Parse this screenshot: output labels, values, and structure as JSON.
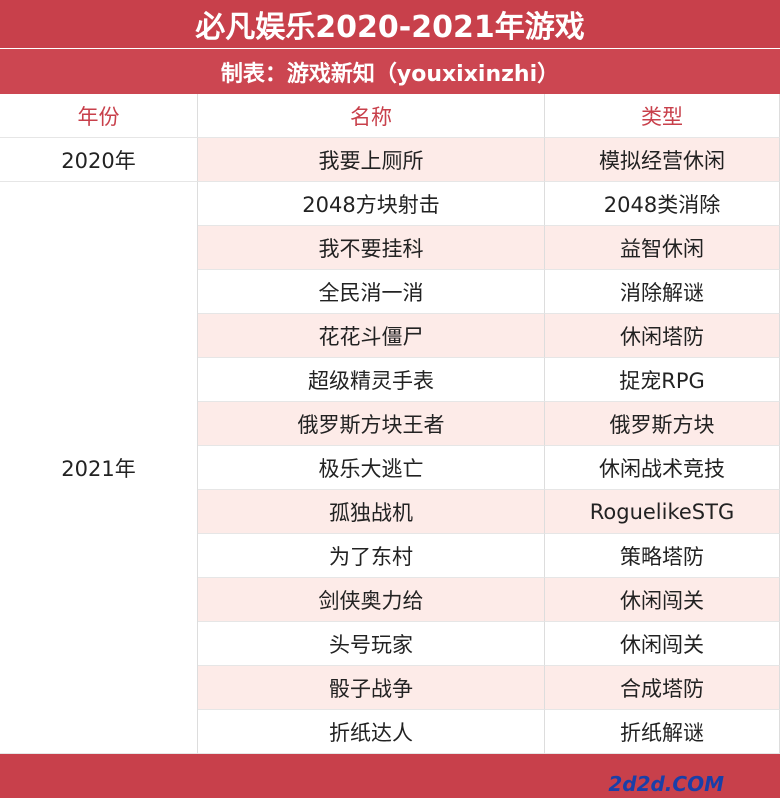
{
  "header": {
    "title": "必凡娱乐2020-2021年游戏",
    "subtitle": "制表：游戏新知（youxixinzhi）"
  },
  "table": {
    "columns": [
      "年份",
      "名称",
      "类型"
    ],
    "groups": [
      {
        "year": "2020年",
        "rows": [
          [
            "我要上厕所",
            "模拟经营休闲"
          ]
        ]
      },
      {
        "year": "2021年",
        "rows": [
          [
            "2048方块射击",
            "2048类消除"
          ],
          [
            "我不要挂科",
            "益智休闲"
          ],
          [
            "全民消一消",
            "消除解谜"
          ],
          [
            "花花斗僵尸",
            "休闲塔防"
          ],
          [
            "超级精灵手表",
            "捉宠RPG"
          ],
          [
            "俄罗斯方块王者",
            "俄罗斯方块"
          ],
          [
            "极乐大逃亡",
            "休闲战术竞技"
          ],
          [
            "孤独战机",
            "RoguelikeSTG"
          ],
          [
            "为了东村",
            "策略塔防"
          ],
          [
            "剑侠奥力给",
            "休闲闯关"
          ],
          [
            "头号玩家",
            "休闲闯关"
          ],
          [
            "骰子战争",
            "合成塔防"
          ],
          [
            "折纸达人",
            "折纸解谜"
          ]
        ]
      }
    ]
  },
  "watermark": "2d2d.COM"
}
